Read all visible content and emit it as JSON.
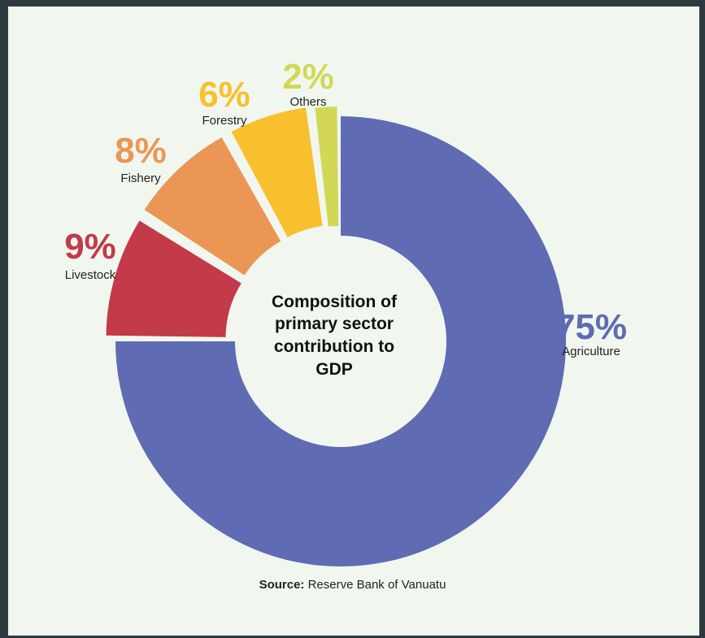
{
  "chart_data": {
    "type": "pie",
    "title": "Composition of primary sector contribution to GDP",
    "title_lines": [
      "Composition of",
      "primary sector",
      "contribution to",
      "GDP"
    ],
    "slices": [
      {
        "label": "Agriculture",
        "value": 75,
        "value_label": "75%",
        "color": "#5f6bb3"
      },
      {
        "label": "Livestock",
        "value": 9,
        "value_label": "9%",
        "color": "#c33a4a"
      },
      {
        "label": "Fishery",
        "value": 8,
        "value_label": "8%",
        "color": "#eb9654"
      },
      {
        "label": "Forestry",
        "value": 6,
        "value_label": "6%",
        "color": "#f9c02d"
      },
      {
        "label": "Others",
        "value": 2,
        "value_label": "2%",
        "color": "#d2d856"
      }
    ]
  },
  "source": {
    "prefix": "Source:",
    "text": " Reserve Bank of Vanuatu"
  },
  "colors": {
    "background": "#f1f7ef",
    "frame": "#2c3a40"
  }
}
